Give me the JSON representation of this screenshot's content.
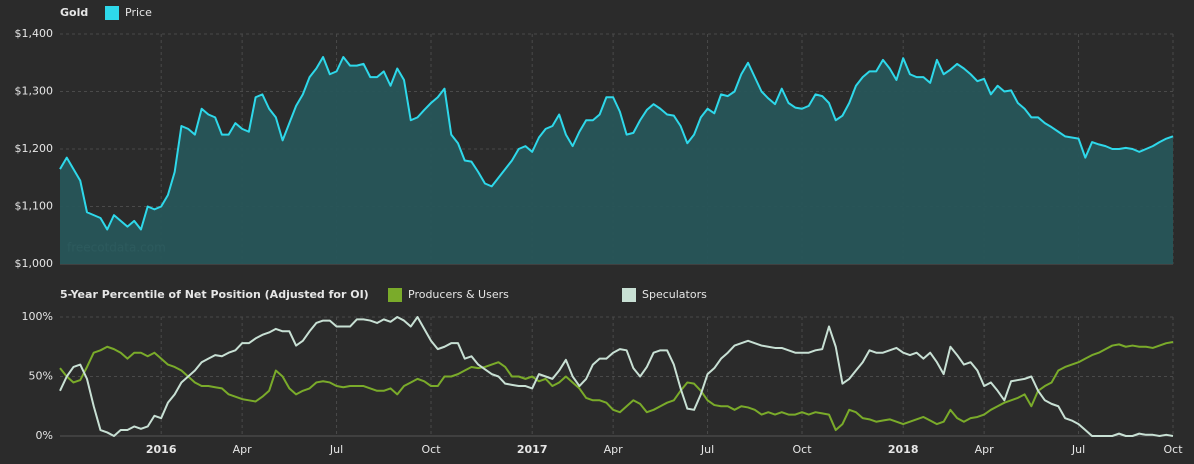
{
  "chart_data": [
    {
      "type": "area",
      "title": "Gold",
      "source": "freecotdata.com",
      "ylim": [
        1000,
        1400
      ],
      "yticks": [
        {
          "value": 1000,
          "label": "$1,000"
        },
        {
          "value": 1100,
          "label": "$1,100"
        },
        {
          "value": 1200,
          "label": "$1,200"
        },
        {
          "value": 1300,
          "label": "$1,300"
        },
        {
          "value": 1400,
          "label": "$1,400"
        }
      ],
      "grid": true,
      "series": [
        {
          "name": "Price",
          "color": "#2ed8ea",
          "fill": "#275558",
          "values": [
            1165,
            1185,
            1165,
            1145,
            1090,
            1085,
            1080,
            1060,
            1085,
            1075,
            1065,
            1075,
            1060,
            1100,
            1095,
            1100,
            1120,
            1160,
            1240,
            1235,
            1225,
            1270,
            1260,
            1255,
            1225,
            1225,
            1245,
            1235,
            1230,
            1290,
            1295,
            1270,
            1255,
            1215,
            1245,
            1275,
            1295,
            1325,
            1340,
            1360,
            1330,
            1335,
            1360,
            1345,
            1345,
            1348,
            1325,
            1325,
            1335,
            1310,
            1340,
            1320,
            1250,
            1255,
            1268,
            1280,
            1290,
            1305,
            1225,
            1210,
            1180,
            1178,
            1160,
            1140,
            1135,
            1150,
            1165,
            1180,
            1200,
            1205,
            1195,
            1220,
            1235,
            1240,
            1260,
            1225,
            1205,
            1230,
            1250,
            1250,
            1260,
            1290,
            1290,
            1265,
            1225,
            1228,
            1250,
            1268,
            1278,
            1270,
            1260,
            1258,
            1240,
            1210,
            1225,
            1255,
            1270,
            1262,
            1295,
            1292,
            1300,
            1330,
            1350,
            1325,
            1300,
            1288,
            1278,
            1305,
            1280,
            1272,
            1270,
            1275,
            1295,
            1292,
            1280,
            1250,
            1258,
            1280,
            1310,
            1325,
            1335,
            1335,
            1355,
            1340,
            1320,
            1358,
            1330,
            1325,
            1325,
            1315,
            1355,
            1330,
            1338,
            1348,
            1340,
            1330,
            1318,
            1322,
            1295,
            1310,
            1300,
            1302,
            1280,
            1270,
            1255,
            1255,
            1245,
            1238,
            1230,
            1222,
            1220,
            1218,
            1185,
            1212,
            1208,
            1205,
            1200,
            1200,
            1202,
            1200,
            1195,
            1200,
            1205,
            1212,
            1218,
            1222
          ]
        }
      ]
    },
    {
      "type": "line",
      "title": "5-Year Percentile of Net Position (Adjusted for OI)",
      "ylim": [
        0,
        100
      ],
      "yticks": [
        {
          "value": 0,
          "label": "0%"
        },
        {
          "value": 50,
          "label": "50%"
        },
        {
          "value": 100,
          "label": "100%"
        }
      ],
      "grid": true,
      "categories": [
        null,
        null,
        null,
        null,
        null,
        null,
        null,
        null,
        null,
        null,
        null,
        null,
        null,
        null,
        null,
        "2016",
        null,
        null,
        null,
        null,
        null,
        null,
        null,
        null,
        null,
        null,
        null,
        "Apr",
        null,
        null,
        null,
        null,
        null,
        null,
        null,
        null,
        null,
        null,
        null,
        null,
        null,
        "Jul",
        null,
        null,
        null,
        null,
        null,
        null,
        null,
        null,
        null,
        null,
        null,
        null,
        null,
        "Oct",
        null,
        null,
        null,
        null,
        null,
        null,
        null,
        null,
        null,
        null,
        null,
        null,
        null,
        null,
        "2017",
        null,
        null,
        null,
        null,
        null,
        null,
        null,
        null,
        null,
        null,
        null,
        "Apr",
        null,
        null,
        null,
        null,
        null,
        null,
        null,
        null,
        null,
        null,
        null,
        null,
        null,
        "Jul",
        null,
        null,
        null,
        null,
        null,
        null,
        null,
        null,
        null,
        null,
        null,
        null,
        null,
        "Oct",
        null,
        null,
        null,
        null,
        null,
        null,
        null,
        null,
        null,
        null,
        null,
        null,
        null,
        null,
        "2018",
        null,
        null,
        null,
        null,
        null,
        null,
        null,
        null,
        null,
        null,
        null,
        "Apr",
        null,
        null,
        null,
        null,
        null,
        null,
        null,
        null,
        null,
        null,
        null,
        null,
        null,
        "Jul",
        null,
        null,
        null,
        null,
        null,
        null,
        null,
        null,
        null,
        null,
        null,
        null,
        null,
        "Oct"
      ],
      "series": [
        {
          "name": "Producers & Users",
          "color": "#7aab2a",
          "values": [
            57,
            50,
            45,
            47,
            58,
            70,
            72,
            75,
            73,
            70,
            65,
            70,
            70,
            67,
            70,
            65,
            60,
            58,
            55,
            50,
            45,
            42,
            42,
            41,
            40,
            35,
            33,
            31,
            30,
            29,
            33,
            38,
            55,
            50,
            40,
            35,
            38,
            40,
            45,
            46,
            45,
            42,
            41,
            42,
            42,
            42,
            40,
            38,
            38,
            40,
            35,
            42,
            45,
            48,
            46,
            42,
            42,
            50,
            50,
            52,
            55,
            58,
            57,
            58,
            60,
            62,
            58,
            50,
            50,
            48,
            50,
            46,
            48,
            42,
            45,
            50,
            45,
            40,
            32,
            30,
            30,
            28,
            22,
            20,
            25,
            30,
            27,
            20,
            22,
            25,
            28,
            30,
            38,
            45,
            44,
            38,
            30,
            26,
            25,
            25,
            22,
            25,
            24,
            22,
            18,
            20,
            18,
            20,
            18,
            18,
            20,
            18,
            20,
            19,
            18,
            5,
            10,
            22,
            20,
            15,
            14,
            12,
            13,
            14,
            12,
            10,
            12,
            14,
            16,
            13,
            10,
            12,
            22,
            15,
            12,
            15,
            16,
            18,
            22,
            25,
            28,
            30,
            32,
            35,
            25,
            38,
            42,
            45,
            55,
            58,
            60,
            62,
            65,
            68,
            70,
            73,
            76,
            77,
            75,
            76,
            75,
            75,
            74,
            76,
            78,
            79
          ]
        },
        {
          "name": "Speculators",
          "color": "#c8e0d4",
          "values": [
            38,
            50,
            58,
            60,
            48,
            25,
            5,
            3,
            0,
            5,
            5,
            8,
            6,
            8,
            17,
            15,
            28,
            35,
            45,
            50,
            55,
            62,
            65,
            68,
            67,
            70,
            72,
            78,
            78,
            82,
            85,
            87,
            90,
            88,
            88,
            76,
            80,
            88,
            95,
            97,
            97,
            92,
            92,
            92,
            98,
            98,
            97,
            95,
            98,
            96,
            100,
            97,
            92,
            100,
            90,
            80,
            73,
            75,
            78,
            78,
            65,
            67,
            60,
            56,
            52,
            50,
            44,
            43,
            42,
            42,
            40,
            52,
            50,
            48,
            55,
            64,
            50,
            42,
            48,
            60,
            65,
            65,
            70,
            73,
            72,
            57,
            50,
            58,
            70,
            72,
            72,
            60,
            40,
            23,
            22,
            35,
            52,
            57,
            65,
            70,
            76,
            78,
            80,
            78,
            76,
            75,
            74,
            74,
            72,
            70,
            70,
            70,
            72,
            73,
            92,
            75,
            44,
            48,
            55,
            62,
            72,
            70,
            70,
            72,
            74,
            70,
            68,
            70,
            65,
            70,
            62,
            52,
            75,
            68,
            60,
            62,
            55,
            42,
            45,
            38,
            30,
            46,
            47,
            48,
            50,
            38,
            30,
            27,
            25,
            15,
            13,
            10,
            5,
            0,
            0,
            0,
            0,
            2,
            0,
            0,
            2,
            1,
            1,
            0,
            1,
            0
          ]
        }
      ]
    }
  ]
}
